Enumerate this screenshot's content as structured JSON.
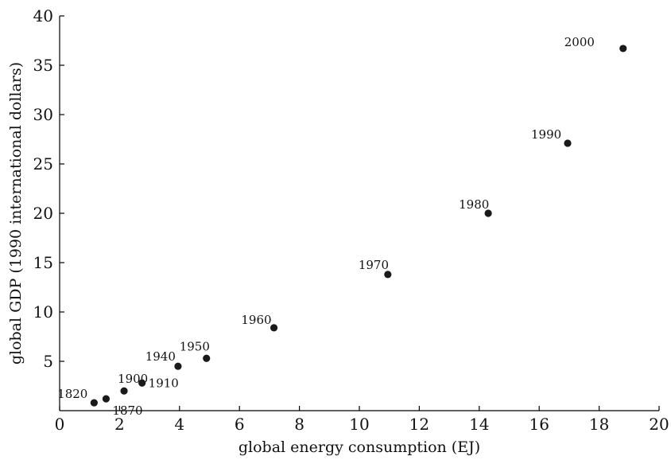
{
  "chart_data": {
    "type": "scatter",
    "title": "",
    "xlabel": "global energy consumption (EJ)",
    "ylabel": "global GDP (1990 international dollars)",
    "xlim": [
      0,
      20
    ],
    "ylim": [
      0,
      40
    ],
    "xticks": [
      0,
      2,
      4,
      6,
      8,
      10,
      12,
      14,
      16,
      18,
      20
    ],
    "yticks": [
      5,
      10,
      15,
      20,
      25,
      30,
      35,
      40
    ],
    "grid": false,
    "legend": "none",
    "marker_color": "#1a1a1a",
    "points": [
      {
        "label": "1820",
        "x": 1.15,
        "y": 0.8
      },
      {
        "label": "1870",
        "x": 1.55,
        "y": 1.2
      },
      {
        "label": "1900",
        "x": 2.15,
        "y": 2.0
      },
      {
        "label": "1910",
        "x": 2.75,
        "y": 2.8
      },
      {
        "label": "1940",
        "x": 3.95,
        "y": 4.5
      },
      {
        "label": "1950",
        "x": 4.9,
        "y": 5.3
      },
      {
        "label": "1960",
        "x": 7.15,
        "y": 8.4
      },
      {
        "label": "1970",
        "x": 10.95,
        "y": 13.8
      },
      {
        "label": "1980",
        "x": 14.3,
        "y": 20.0
      },
      {
        "label": "1990",
        "x": 16.95,
        "y": 27.1
      },
      {
        "label": "2000",
        "x": 18.8,
        "y": 36.7
      }
    ]
  }
}
